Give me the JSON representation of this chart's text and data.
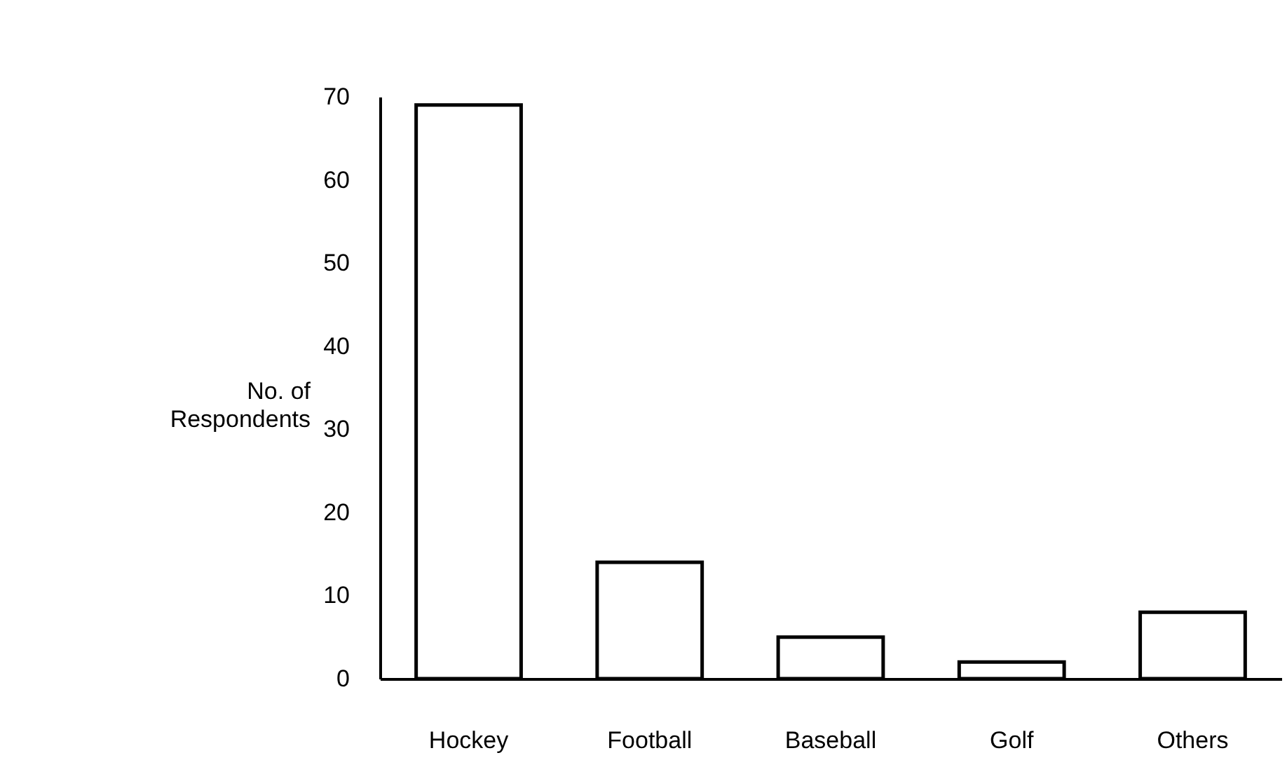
{
  "chart_data": {
    "type": "bar",
    "ylabel": "No. of Respondents",
    "categories": [
      "Hockey",
      "Football",
      "Baseball",
      "Golf",
      "Others"
    ],
    "values": [
      69,
      14,
      5,
      2,
      8
    ],
    "color": "#ffffff",
    "ylim": [
      0,
      70
    ],
    "yticks": [
      0,
      10,
      20,
      30,
      40,
      50,
      60,
      70
    ],
    "grid": false
  }
}
